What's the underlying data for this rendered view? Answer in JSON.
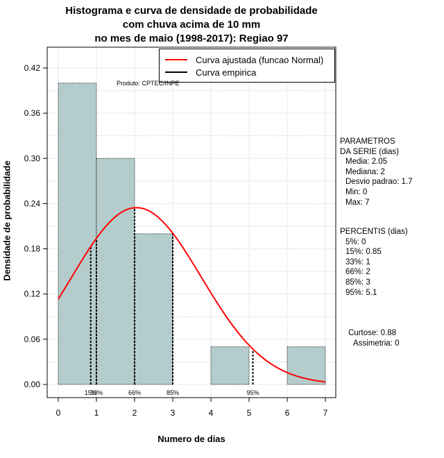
{
  "chart_data": {
    "type": "histogram",
    "title_lines": [
      "Histograma e curva de densidade de probabilidade",
      "com chuva acima de 10 mm",
      "no mes de maio (1998-2017): Regiao 97"
    ],
    "xlabel": "Numero de dias",
    "ylabel": "Densidade de probabilidade",
    "xlim": [
      0,
      7
    ],
    "ylim": [
      0,
      0.42
    ],
    "x_ticks": [
      0,
      1,
      2,
      3,
      4,
      5,
      6,
      7
    ],
    "y_ticks": [
      "0.00",
      "0.06",
      "0.12",
      "0.18",
      "0.24",
      "0.30",
      "0.36",
      "0.42"
    ],
    "grid": true,
    "bins": [
      {
        "start": 0,
        "end": 1,
        "density": 0.4
      },
      {
        "start": 1,
        "end": 2,
        "density": 0.3
      },
      {
        "start": 2,
        "end": 3,
        "density": 0.2
      },
      {
        "start": 3,
        "end": 4,
        "density": 0.0
      },
      {
        "start": 4,
        "end": 5,
        "density": 0.05
      },
      {
        "start": 5,
        "end": 6,
        "density": 0.0
      },
      {
        "start": 6,
        "end": 7,
        "density": 0.05
      }
    ],
    "fitted_curve": {
      "distribution": "normal",
      "mean": 2.05,
      "sd": 1.7
    },
    "percentile_lines": [
      {
        "label": "15%",
        "x": 0.85
      },
      {
        "label": "33%",
        "x": 1
      },
      {
        "label": "66%",
        "x": 2
      },
      {
        "label": "85%",
        "x": 3
      },
      {
        "label": "95%",
        "x": 5.1
      }
    ],
    "legend": [
      {
        "label": "Curva ajustada (funcao Normal)",
        "color": "#ff0000"
      },
      {
        "label": "Curva empirica",
        "color": "#000000"
      }
    ],
    "product_label": "Produto: CPTEC/INPE",
    "colors": {
      "bar_fill": "#b4cccc",
      "curve": "#ff0000",
      "grid": "#bebebe"
    }
  },
  "panel": {
    "params_title_1": "PARAMETROS",
    "params_title_2": "DA SERIE (dias)",
    "params": [
      "Media: 2.05",
      "Mediana: 2",
      "Desvio padrao: 1.7",
      "Min: 0",
      "Max: 7"
    ],
    "percentis_title": "PERCENTIS (dias)",
    "percentis": [
      "5%: 0",
      "15%: 0.85",
      "33%: 1",
      "66%: 2",
      "85%: 3",
      "95%: 5.1"
    ],
    "curtose": "Curtose: 0.88",
    "assimetria": "Assimetria: 0"
  }
}
